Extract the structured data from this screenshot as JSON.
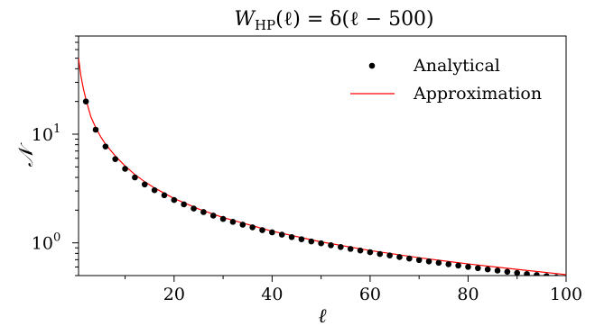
{
  "chart_data": {
    "type": "scatter",
    "title": "W_HP(ℓ) = δ(ℓ − 500)",
    "title_parts": {
      "w": "W",
      "sub": "HP",
      "rest": "(ℓ) = δ(ℓ − 500)"
    },
    "xlabel": "ℓ",
    "ylabel": "𝒩",
    "xlim": [
      0.5,
      100
    ],
    "ylim": [
      0.5,
      80
    ],
    "yscale": "log",
    "xticks": [
      20,
      40,
      60,
      80,
      100
    ],
    "xtick_labels": [
      "20",
      "40",
      "60",
      "80",
      "100"
    ],
    "yticks": [
      1,
      10
    ],
    "ytick_labels": [
      {
        "base": "10",
        "exp": "0"
      },
      {
        "base": "10",
        "exp": "1"
      }
    ],
    "grid": false,
    "legend_position": "top-right",
    "series": [
      {
        "name": "Analytical",
        "kind": "points",
        "color": "#000000",
        "x": [
          2,
          4,
          6,
          8,
          10,
          12,
          14,
          16,
          18,
          20,
          22,
          24,
          26,
          28,
          30,
          32,
          34,
          36,
          38,
          40,
          42,
          44,
          46,
          48,
          50,
          52,
          54,
          56,
          58,
          60,
          62,
          64,
          66,
          68,
          70,
          72,
          74,
          76,
          78,
          80,
          82,
          84,
          86,
          88,
          90,
          92,
          94,
          96,
          98,
          100
        ],
        "y": [
          20.0,
          11.0,
          7.7,
          5.9,
          4.8,
          4.0,
          3.45,
          3.05,
          2.74,
          2.48,
          2.26,
          2.07,
          1.92,
          1.78,
          1.66,
          1.56,
          1.47,
          1.39,
          1.31,
          1.25,
          1.19,
          1.13,
          1.08,
          1.03,
          0.99,
          0.95,
          0.915,
          0.88,
          0.85,
          0.82,
          0.79,
          0.765,
          0.74,
          0.717,
          0.695,
          0.675,
          0.655,
          0.636,
          0.618,
          0.601,
          0.585,
          0.57,
          0.556,
          0.542,
          0.529,
          0.517,
          0.505,
          0.494,
          0.483,
          0.473
        ]
      },
      {
        "name": "Approximation",
        "kind": "line",
        "color": "#ff0000",
        "x": [
          0.5,
          0.75,
          1,
          1.5,
          2,
          3,
          4,
          5,
          6,
          8,
          10,
          12,
          14,
          16,
          20,
          25,
          30,
          40,
          50,
          60,
          70,
          80,
          90,
          100
        ],
        "y": [
          50,
          41,
          34,
          26,
          21,
          14.5,
          11.5,
          9.5,
          8.1,
          6.3,
          5.1,
          4.25,
          3.65,
          3.2,
          2.56,
          2.05,
          1.71,
          1.28,
          1.02,
          0.85,
          0.73,
          0.64,
          0.57,
          0.51
        ]
      }
    ]
  }
}
